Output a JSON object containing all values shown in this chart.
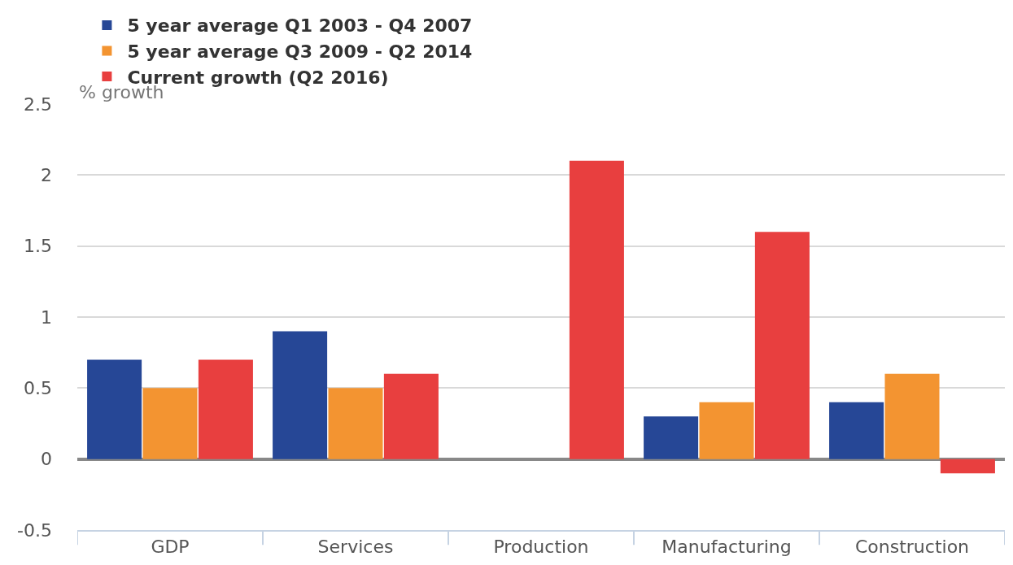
{
  "chart_data": {
    "type": "bar",
    "ylabel": "% growth",
    "categories": [
      "GDP",
      "Services",
      "Production",
      "Manufacturing",
      "Construction"
    ],
    "series": [
      {
        "name": "5 year average Q1 2003 - Q4 2007",
        "color": "#264796",
        "values": [
          0.7,
          0.9,
          0,
          0.3,
          0.4
        ]
      },
      {
        "name": "5 year average Q3 2009 - Q2 2014",
        "color": "#f39431",
        "values": [
          0.5,
          0.5,
          0,
          0.4,
          0.6
        ]
      },
      {
        "name": "Current growth (Q2 2016)",
        "color": "#e83f3f",
        "values": [
          0.7,
          0.6,
          2.1,
          1.6,
          -0.1
        ]
      }
    ],
    "ylim": [
      -0.5,
      2.5
    ],
    "yticks": [
      -0.5,
      0,
      0.5,
      1,
      1.5,
      2,
      2.5
    ],
    "grid": "y",
    "legend": "top left"
  }
}
